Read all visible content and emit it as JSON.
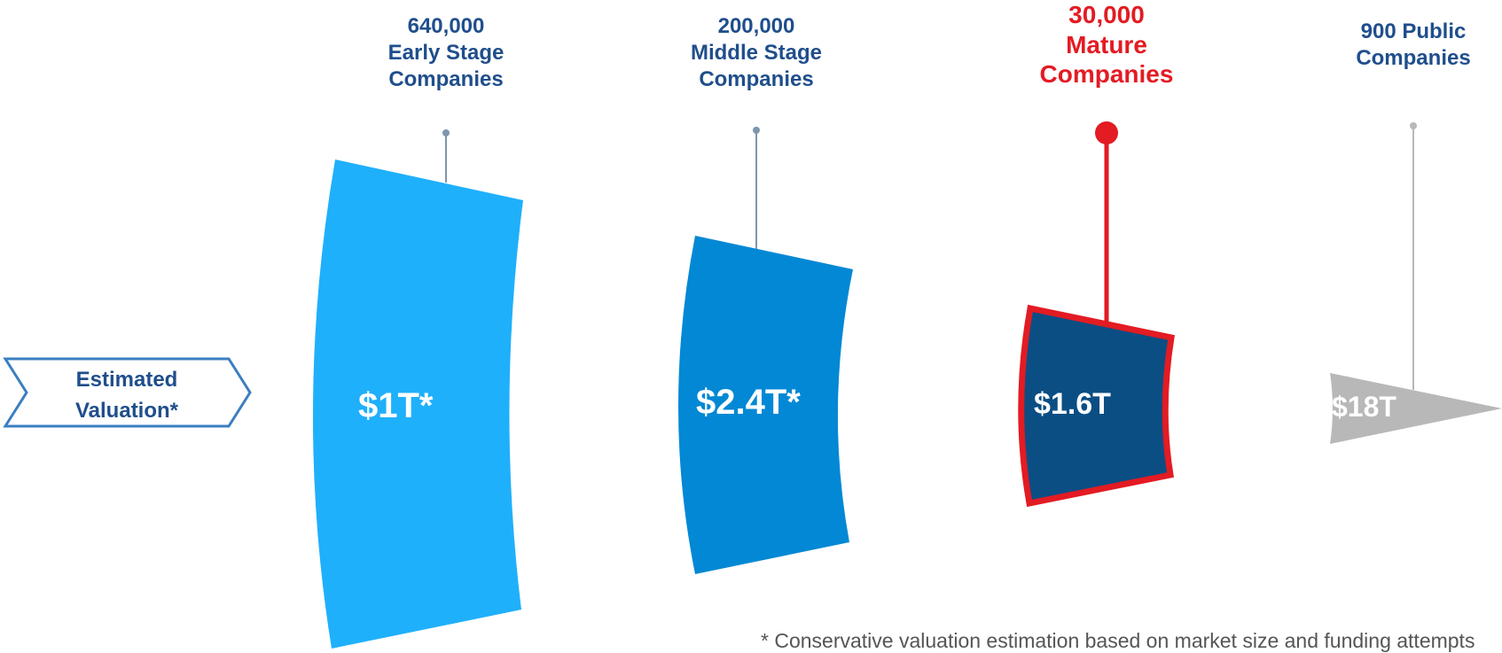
{
  "colors": {
    "early": "#1fb0fb",
    "middle": "#0288d4",
    "mature": "#0a4e84",
    "mature_outline": "#e31b23",
    "public": "#b8b8b8",
    "label_blue": "#1f4e8c",
    "label_red": "#e31b23",
    "arrow_outline": "#3a7fc1"
  },
  "arrow": {
    "line1": "Estimated",
    "line2": "Valuation*"
  },
  "stages": [
    {
      "count": "640,000",
      "line2": "Early Stage",
      "line3": "Companies",
      "value": "$1T*"
    },
    {
      "count": "200,000",
      "line2": "Middle Stage",
      "line3": "Companies",
      "value": "$2.4T*"
    },
    {
      "count": "30,000",
      "line2": "Mature",
      "line3": "Companies",
      "value": "$1.6T",
      "highlighted": true
    },
    {
      "line1": "900 Public",
      "line2": "Companies",
      "value": "$18T"
    }
  ],
  "footnote": "* Conservative valuation estimation based on market size and funding attempts"
}
